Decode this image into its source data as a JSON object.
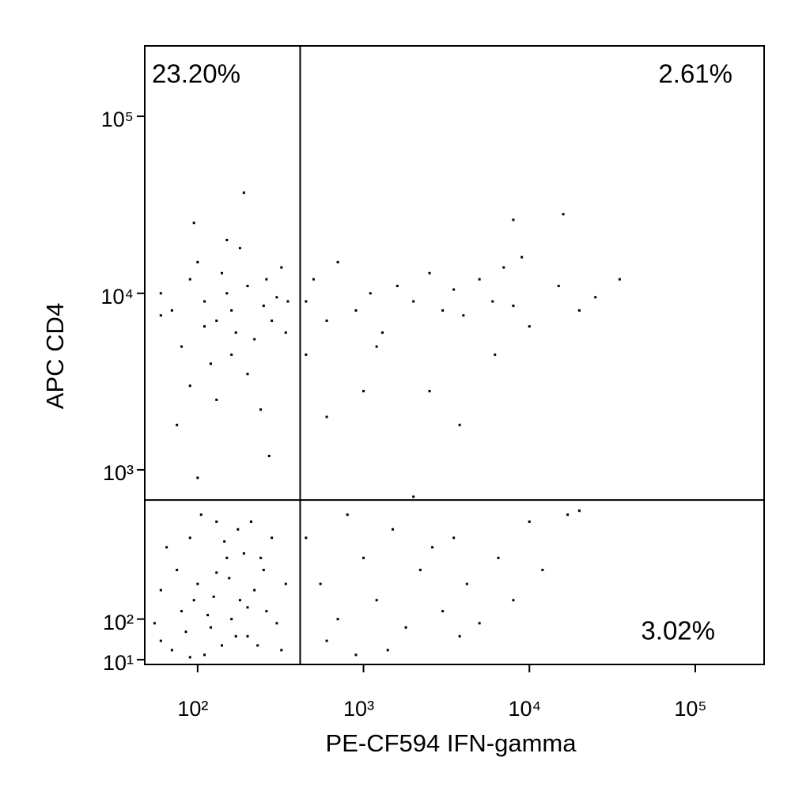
{
  "chart_data": {
    "type": "scatter",
    "x_label": "PE-CF594 IFN-gamma",
    "y_label": "APC CD4",
    "xscale": "log",
    "yscale": "biexponential",
    "xlim": [
      48,
      260000
    ],
    "ylim": [
      0,
      250000
    ],
    "xticks": [
      {
        "value": 100,
        "label": "10²"
      },
      {
        "value": 1000,
        "label": "10³"
      },
      {
        "value": 10000,
        "label": "10⁴"
      },
      {
        "value": 100000,
        "label": "10⁵"
      }
    ],
    "yticks": [
      {
        "value": 10,
        "label": "10¹"
      },
      {
        "value": 100,
        "label": "10²"
      },
      {
        "value": 1000,
        "label": "10³"
      },
      {
        "value": 10000,
        "label": "10⁴"
      },
      {
        "value": 100000,
        "label": "10⁵"
      }
    ],
    "gates": {
      "x": 415,
      "y": 670
    },
    "annotations": [
      "23.20%",
      "2.61%",
      "3.02%"
    ],
    "series": [
      {
        "color": "#000000",
        "x": [
          60,
          80,
          100,
          120,
          150,
          180,
          90,
          200,
          250,
          70,
          130,
          160,
          110,
          220,
          300,
          65,
          140,
          95,
          175,
          260,
          75,
          125,
          190,
          230,
          85,
          155,
          105,
          280,
          340,
          60,
          115,
          170,
          210,
          145,
          90,
          240,
          320,
          130,
          55,
          200,
          70,
          90,
          110,
          130,
          150,
          170,
          200,
          250,
          300,
          80,
          100,
          120,
          140,
          160,
          180,
          220,
          260,
          60,
          90,
          130,
          200,
          280,
          340,
          190,
          95,
          150,
          75,
          240,
          320,
          110,
          160,
          60,
          350,
          270,
          100,
          450,
          500,
          600,
          700,
          900,
          1100,
          1300,
          1600,
          2000,
          2500,
          3000,
          3500,
          4000,
          5000,
          6000,
          7000,
          8000,
          9000,
          10000,
          15000,
          20000,
          25000,
          35000,
          8000,
          16000,
          1000,
          2500,
          3800,
          600,
          6200,
          450,
          1200,
          450,
          550,
          700,
          800,
          1000,
          1200,
          1500,
          1800,
          2200,
          2600,
          3000,
          3500,
          4200,
          5000,
          6500,
          8000,
          10000,
          12000,
          17000,
          20000,
          600,
          900,
          1400,
          3800,
          2000
        ],
        "y": [
          50,
          120,
          200,
          80,
          300,
          150,
          400,
          60,
          250,
          30,
          500,
          100,
          20,
          180,
          90,
          350,
          40,
          150,
          450,
          120,
          250,
          160,
          320,
          40,
          70,
          220,
          550,
          400,
          200,
          180,
          110,
          60,
          500,
          380,
          15,
          300,
          30,
          240,
          90,
          130,
          8000,
          12000,
          9000,
          7000,
          10000,
          6000,
          11000,
          8500,
          9500,
          5000,
          15000,
          4000,
          13000,
          8000,
          18000,
          5500,
          12000,
          10000,
          3000,
          2500,
          3500,
          7000,
          6000,
          37000,
          25000,
          20000,
          1800,
          2200,
          14000,
          6500,
          4500,
          7500,
          9000,
          1200,
          900,
          9000,
          12000,
          7000,
          15000,
          8000,
          10000,
          6000,
          11000,
          9000,
          13000,
          8000,
          10500,
          7500,
          12000,
          9000,
          14000,
          8500,
          16000,
          6500,
          11000,
          8000,
          9500,
          12000,
          26000,
          28000,
          2800,
          2800,
          1800,
          2000,
          4500,
          4500,
          5000,
          400,
          200,
          100,
          550,
          300,
          150,
          450,
          80,
          250,
          350,
          120,
          400,
          200,
          90,
          300,
          150,
          500,
          250,
          550,
          580,
          50,
          20,
          30,
          60,
          700
        ]
      }
    ]
  }
}
